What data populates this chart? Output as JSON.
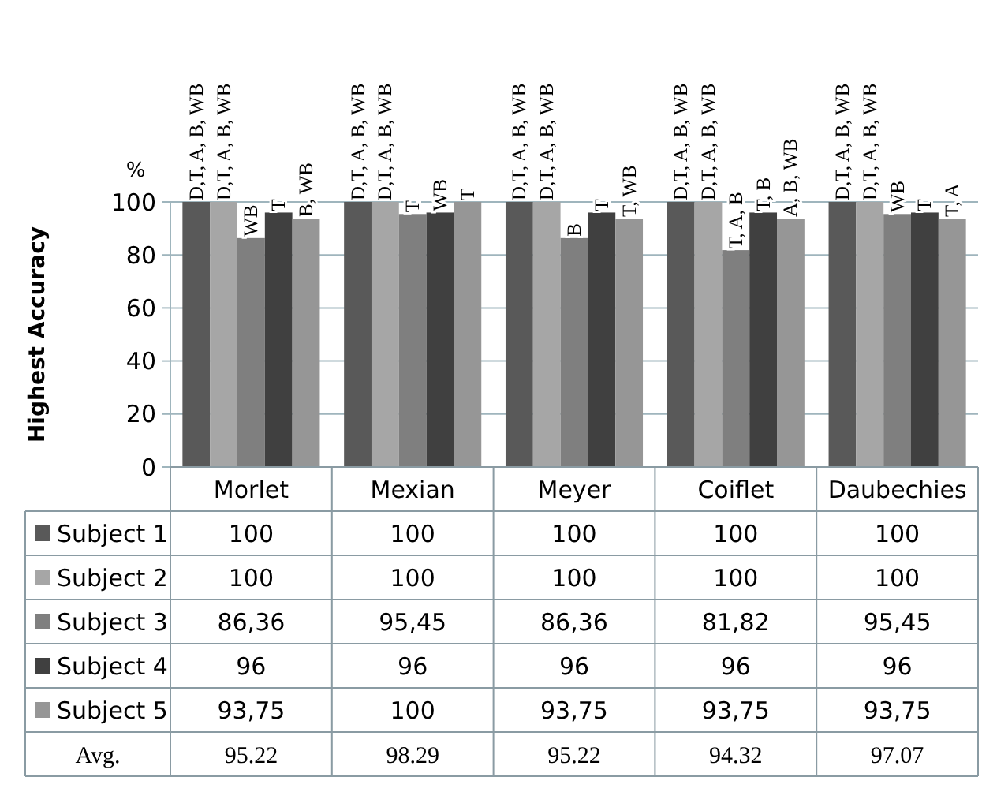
{
  "chart_data": {
    "type": "bar",
    "ylabel": "Highest Accuracy",
    "categories": [
      "Morlet",
      "Mexian",
      "Meyer",
      "Coiflet",
      "Daubechies"
    ],
    "series": [
      {
        "name": "Subject 1",
        "color": "#595959",
        "values": [
          100,
          100,
          100,
          100,
          100
        ],
        "value_labels": [
          "100",
          "100",
          "100",
          "100",
          "100"
        ]
      },
      {
        "name": "Subject 2",
        "color": "#a6a6a6",
        "values": [
          100,
          100,
          100,
          100,
          100
        ],
        "value_labels": [
          "100",
          "100",
          "100",
          "100",
          "100"
        ]
      },
      {
        "name": "Subject 3",
        "color": "#7f7f7f",
        "values": [
          86.36,
          95.45,
          86.36,
          81.82,
          95.45
        ],
        "value_labels": [
          "86,36",
          "95,45",
          "86,36",
          "81,82",
          "95,45"
        ]
      },
      {
        "name": "Subject 4",
        "color": "#404040",
        "values": [
          96,
          96,
          96,
          96,
          96
        ],
        "value_labels": [
          "96",
          "96",
          "96",
          "96",
          "96"
        ]
      },
      {
        "name": "Subject 5",
        "color": "#969696",
        "values": [
          93.75,
          100,
          93.75,
          93.75,
          93.75
        ],
        "value_labels": [
          "93,75",
          "100",
          "93,75",
          "93,75",
          "93,75"
        ]
      }
    ],
    "ylim": [
      0,
      100
    ],
    "yticks": [
      0,
      20,
      40,
      60,
      80,
      100
    ],
    "grid": "y",
    "legend": "bottom",
    "annotations": [
      "%",
      "Avg.",
      "95.22",
      "98.29",
      "95.22",
      "94.32",
      "97.07",
      "D,T, A, B, WB",
      "D,T, A, B, WB",
      "WB",
      "T",
      "B, WB",
      "D,T, A, B, WB",
      "D,T, A, B, WB",
      "T",
      "WB",
      "T",
      "D,T, A, B, WB",
      "D,T, A, B, WB",
      "B",
      "T",
      "T, WB",
      "D,T, A, B, WB",
      "D,T, A, B, WB",
      "T, A, B",
      "T, B",
      "A, B, WB",
      "D,T, A, B, WB",
      "D,T, A, B, WB",
      "WB",
      "T",
      "T, A"
    ]
  }
}
